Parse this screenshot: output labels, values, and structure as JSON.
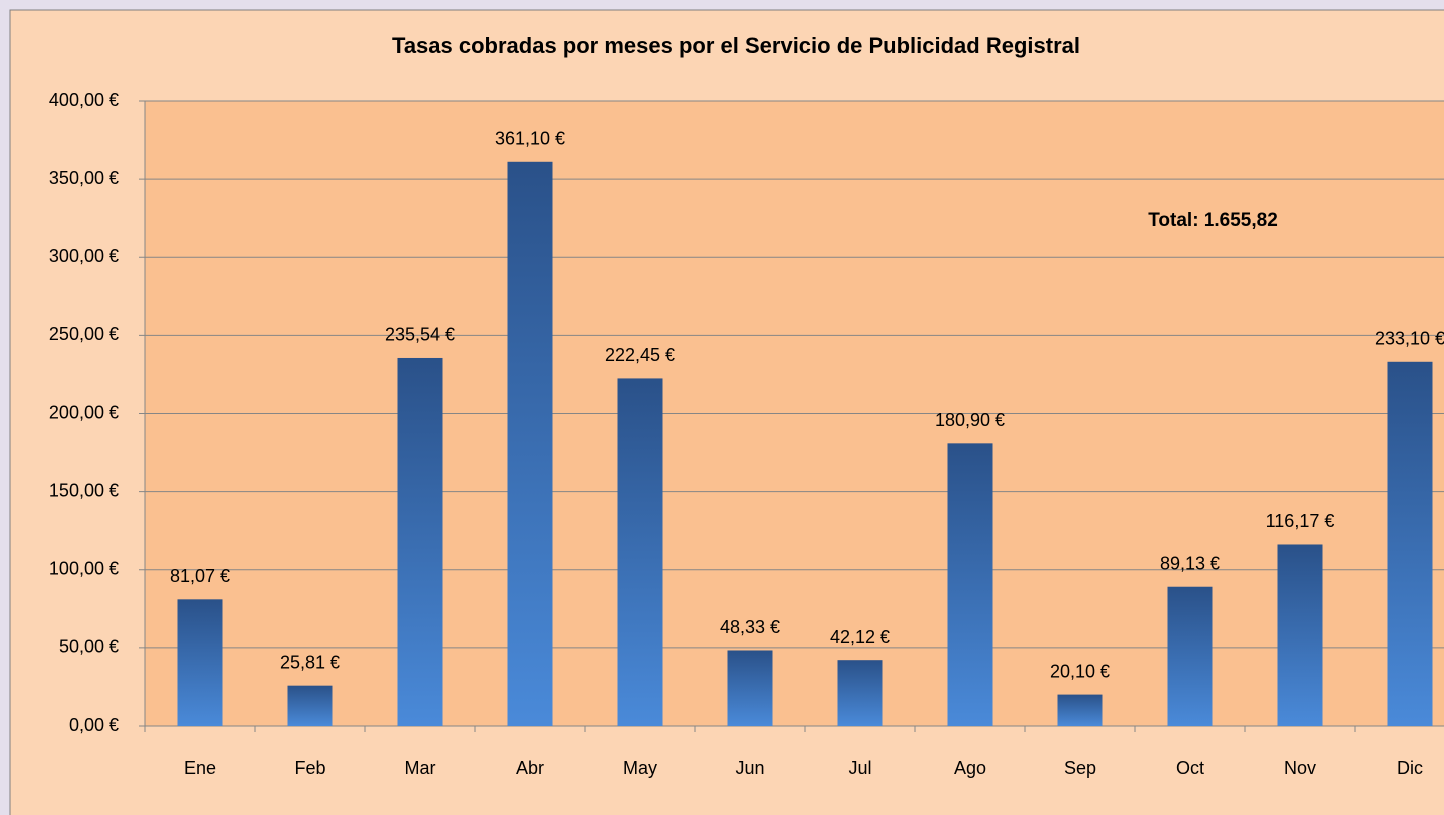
{
  "chart_data": {
    "type": "bar",
    "title": "Tasas cobradas por meses por el Servicio de Publicidad Registral",
    "annotation": "Total: 1.655,82",
    "categories": [
      "Ene",
      "Feb",
      "Mar",
      "Abr",
      "May",
      "Jun",
      "Jul",
      "Ago",
      "Sep",
      "Oct",
      "Nov",
      "Dic"
    ],
    "values": [
      81.07,
      25.81,
      235.54,
      361.1,
      222.45,
      48.33,
      42.12,
      180.9,
      20.1,
      89.13,
      116.17,
      233.1
    ],
    "value_labels": [
      "81,07 €",
      "25,81 €",
      "235,54 €",
      "361,10 €",
      "222,45 €",
      "48,33 €",
      "42,12 €",
      "180,90 €",
      "20,10 €",
      "89,13 €",
      "116,17 €",
      "233,10 €"
    ],
    "color_top": "#2a5189",
    "color_bottom": "#4a8ad9",
    "ylim": [
      0,
      400
    ],
    "yticks": [
      {
        "value": 0,
        "label": "0,00 €"
      },
      {
        "value": 50,
        "label": "50,00 €"
      },
      {
        "value": 100,
        "label": "100,00 €"
      },
      {
        "value": 150,
        "label": "150,00 €"
      },
      {
        "value": 200,
        "label": "200,00 €"
      },
      {
        "value": 250,
        "label": "250,00 €"
      },
      {
        "value": 300,
        "label": "300,00 €"
      },
      {
        "value": 350,
        "label": "350,00 €"
      },
      {
        "value": 400,
        "label": "400,00 €"
      }
    ],
    "grid": true
  }
}
